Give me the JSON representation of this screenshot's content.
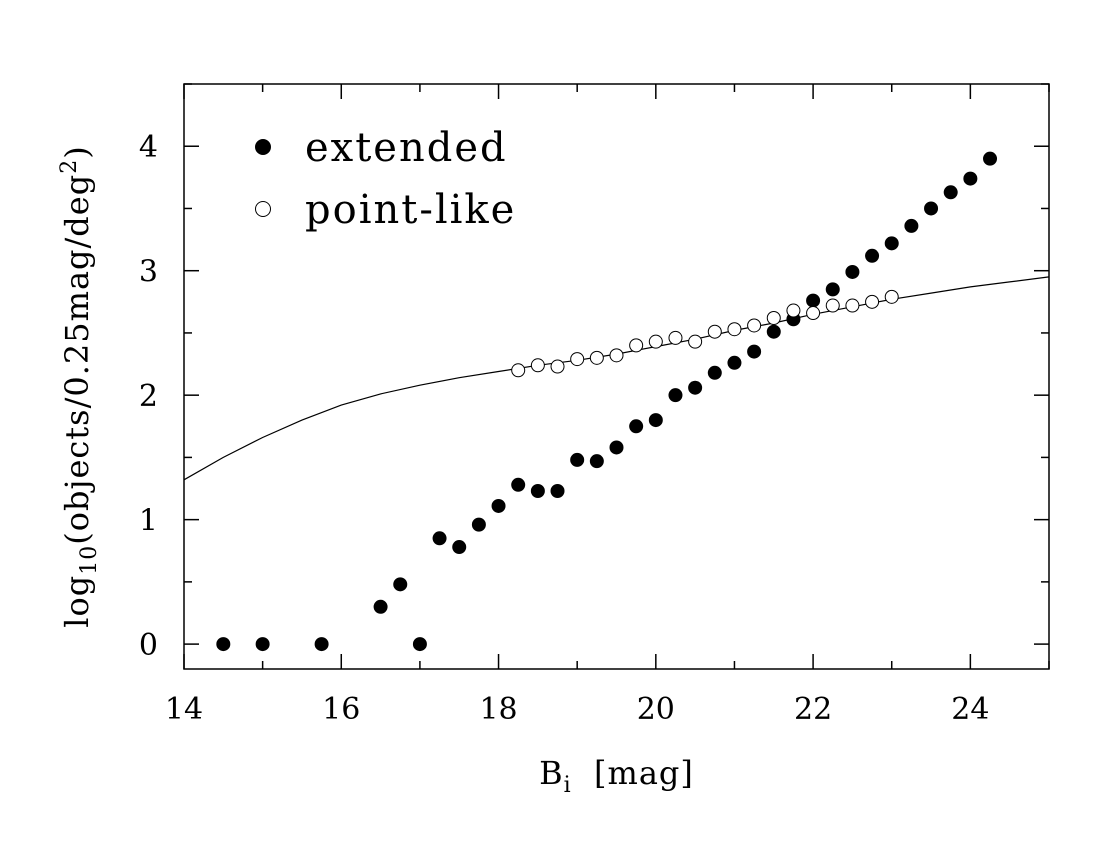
{
  "chart_data": {
    "type": "scatter",
    "title": "",
    "xlabel": {
      "main": "B",
      "sub": "i",
      "rest": "  [mag]"
    },
    "ylabel": {
      "pre": "log",
      "sub": "10",
      "mid": "(objects/0.25mag/deg",
      "sup": "2",
      "post": ")"
    },
    "xlim": [
      14,
      25
    ],
    "ylim": [
      -0.2,
      4.5
    ],
    "x_ticks": [
      14,
      16,
      18,
      20,
      22,
      24
    ],
    "y_ticks": [
      0,
      1,
      2,
      3,
      4
    ],
    "x_tick_labels": [
      "14",
      "16",
      "18",
      "20",
      "22",
      "24"
    ],
    "y_tick_labels": [
      "0",
      "1",
      "2",
      "3",
      "4"
    ],
    "x_minor_step": 1,
    "y_minor_step": 0.5,
    "grid": false,
    "legend_position": "top-left",
    "series": [
      {
        "name": "extended",
        "marker": "filled-circle",
        "color": "#000000",
        "points": [
          [
            14.5,
            0
          ],
          [
            15.0,
            0
          ],
          [
            15.75,
            0
          ],
          [
            16.5,
            0.3
          ],
          [
            16.75,
            0.48
          ],
          [
            17.0,
            0
          ],
          [
            17.25,
            0.85
          ],
          [
            17.5,
            0.78
          ],
          [
            17.75,
            0.96
          ],
          [
            18.0,
            1.11
          ],
          [
            18.25,
            1.28
          ],
          [
            18.5,
            1.23
          ],
          [
            18.75,
            1.23
          ],
          [
            19.0,
            1.48
          ],
          [
            19.25,
            1.47
          ],
          [
            19.5,
            1.58
          ],
          [
            19.75,
            1.75
          ],
          [
            20.0,
            1.8
          ],
          [
            20.25,
            2.0
          ],
          [
            20.5,
            2.06
          ],
          [
            20.75,
            2.18
          ],
          [
            21.0,
            2.26
          ],
          [
            21.25,
            2.35
          ],
          [
            21.5,
            2.51
          ],
          [
            21.75,
            2.61
          ],
          [
            22.0,
            2.76
          ],
          [
            22.25,
            2.85
          ],
          [
            22.5,
            2.99
          ],
          [
            22.75,
            3.12
          ],
          [
            23.0,
            3.22
          ],
          [
            23.25,
            3.36
          ],
          [
            23.5,
            3.5
          ],
          [
            23.75,
            3.63
          ],
          [
            24.0,
            3.74
          ],
          [
            24.25,
            3.9
          ]
        ]
      },
      {
        "name": "point-like",
        "marker": "open-circle",
        "color": "#000000",
        "points": [
          [
            18.25,
            2.2
          ],
          [
            18.5,
            2.24
          ],
          [
            18.75,
            2.23
          ],
          [
            19.0,
            2.29
          ],
          [
            19.25,
            2.3
          ],
          [
            19.5,
            2.32
          ],
          [
            19.75,
            2.4
          ],
          [
            20.0,
            2.43
          ],
          [
            20.25,
            2.46
          ],
          [
            20.5,
            2.43
          ],
          [
            20.75,
            2.51
          ],
          [
            21.0,
            2.53
          ],
          [
            21.25,
            2.56
          ],
          [
            21.5,
            2.62
          ],
          [
            21.75,
            2.68
          ],
          [
            22.0,
            2.66
          ],
          [
            22.25,
            2.72
          ],
          [
            22.5,
            2.72
          ],
          [
            22.75,
            2.75
          ],
          [
            23.0,
            2.79
          ]
        ]
      },
      {
        "name": "",
        "marker": "line",
        "color": "#000000",
        "points": [
          [
            14.0,
            1.32
          ],
          [
            14.5,
            1.5
          ],
          [
            15.0,
            1.66
          ],
          [
            15.5,
            1.8
          ],
          [
            16.0,
            1.92
          ],
          [
            16.5,
            2.01
          ],
          [
            17.0,
            2.08
          ],
          [
            17.5,
            2.14
          ],
          [
            18.0,
            2.19
          ],
          [
            18.5,
            2.24
          ],
          [
            19.0,
            2.28
          ],
          [
            19.5,
            2.33
          ],
          [
            20.0,
            2.39
          ],
          [
            20.5,
            2.45
          ],
          [
            21.0,
            2.52
          ],
          [
            21.5,
            2.58
          ],
          [
            22.0,
            2.65
          ],
          [
            22.5,
            2.71
          ],
          [
            23.0,
            2.77
          ],
          [
            23.5,
            2.82
          ],
          [
            24.0,
            2.87
          ],
          [
            24.5,
            2.91
          ],
          [
            25.0,
            2.95
          ]
        ]
      }
    ]
  }
}
